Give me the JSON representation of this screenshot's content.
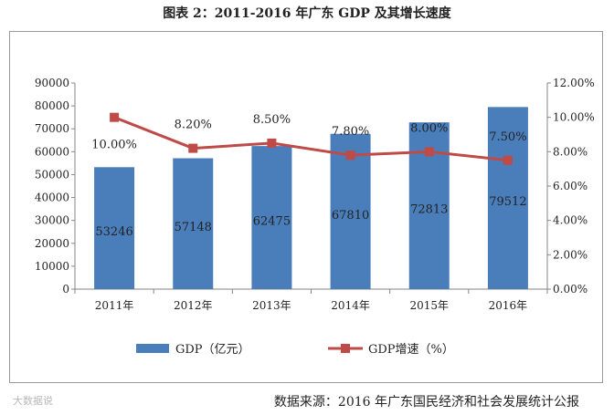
{
  "title": "图表 2：2011-2016 年广东 GDP 及其增长速度",
  "source": "数据来源：2016 年广东国民经济和社会发展统计公报",
  "watermark": "大数据说",
  "colors": {
    "bar": "#4a7ebb",
    "line": "#be4b48",
    "axis": "#868686"
  },
  "chart_data": {
    "type": "bar",
    "categories": [
      "2011年",
      "2012年",
      "2013年",
      "2014年",
      "2015年",
      "2016年"
    ],
    "series": [
      {
        "name": "GDP（亿元）",
        "type": "bar",
        "axis": "left",
        "values": [
          53246,
          57148,
          62475,
          67810,
          72813,
          79512
        ],
        "labels": [
          "53246",
          "57148",
          "62475",
          "67810",
          "72813",
          "79512"
        ]
      },
      {
        "name": "GDP增速（%）",
        "type": "line",
        "axis": "right",
        "values": [
          10.0,
          8.2,
          8.5,
          7.8,
          8.0,
          7.5
        ],
        "labels": [
          "10.00%",
          "8.20%",
          "8.50%",
          "7.80%",
          "8.00%",
          "7.50%"
        ]
      }
    ],
    "y_left": {
      "range": [
        0,
        90000
      ],
      "ticks": [
        "0",
        "10000",
        "20000",
        "30000",
        "40000",
        "50000",
        "60000",
        "70000",
        "80000",
        "90000"
      ]
    },
    "y_right": {
      "range": [
        0,
        12
      ],
      "ticks": [
        "0.00%",
        "2.00%",
        "4.00%",
        "6.00%",
        "8.00%",
        "10.00%",
        "12.00%"
      ]
    },
    "grid": false,
    "legend": "bottom"
  }
}
